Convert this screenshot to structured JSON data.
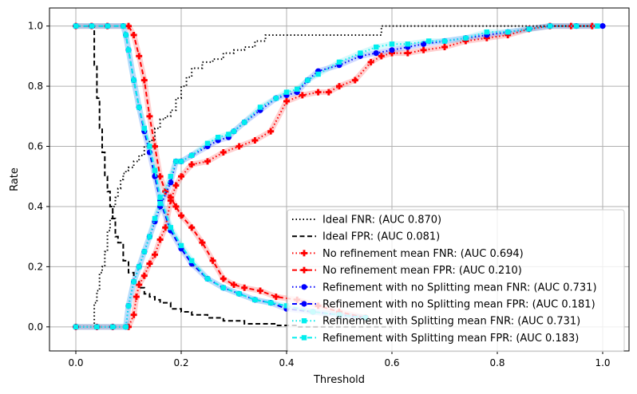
{
  "chart_data": {
    "type": "line",
    "title": "",
    "xlabel": "Threshold",
    "ylabel": "Rate",
    "xlim": [
      -0.05,
      1.05
    ],
    "ylim": [
      -0.08,
      1.06
    ],
    "xticks": [
      0.0,
      0.2,
      0.4,
      0.6,
      0.8,
      1.0
    ],
    "xtick_labels": [
      "0.0",
      "0.2",
      "0.4",
      "0.6",
      "0.8",
      "1.0"
    ],
    "yticks": [
      0.0,
      0.2,
      0.4,
      0.6,
      0.8,
      1.0
    ],
    "ytick_labels": [
      "0.0",
      "0.2",
      "0.4",
      "0.6",
      "0.8",
      "1.0"
    ],
    "grid": true,
    "legend_position": "lower-right",
    "series": [
      {
        "name": "Ideal FNR: (AUC 0.870)",
        "color": "#000000",
        "style": "dotted",
        "marker": "none",
        "x": [
          0.0,
          0.035,
          0.035,
          0.04,
          0.045,
          0.05,
          0.055,
          0.06,
          0.065,
          0.07,
          0.075,
          0.08,
          0.085,
          0.09,
          0.095,
          0.1,
          0.11,
          0.12,
          0.13,
          0.14,
          0.15,
          0.16,
          0.17,
          0.18,
          0.19,
          0.2,
          0.21,
          0.22,
          0.24,
          0.26,
          0.28,
          0.3,
          0.32,
          0.34,
          0.36,
          0.45,
          0.5,
          0.56,
          0.58,
          0.65,
          0.75,
          0.85,
          1.0
        ],
        "y": [
          0.0,
          0.0,
          0.08,
          0.12,
          0.18,
          0.2,
          0.25,
          0.32,
          0.36,
          0.4,
          0.43,
          0.46,
          0.49,
          0.51,
          0.52,
          0.53,
          0.55,
          0.57,
          0.6,
          0.62,
          0.66,
          0.69,
          0.7,
          0.72,
          0.76,
          0.8,
          0.83,
          0.86,
          0.88,
          0.89,
          0.91,
          0.92,
          0.93,
          0.95,
          0.97,
          0.97,
          0.97,
          0.97,
          1.0,
          1.0,
          1.0,
          1.0,
          1.0
        ]
      },
      {
        "name": "Ideal FPR: (AUC 0.081)",
        "color": "#000000",
        "style": "dashed",
        "marker": "none",
        "x": [
          0.0,
          0.03,
          0.035,
          0.04,
          0.045,
          0.05,
          0.055,
          0.06,
          0.065,
          0.07,
          0.075,
          0.08,
          0.09,
          0.1,
          0.11,
          0.12,
          0.13,
          0.14,
          0.15,
          0.16,
          0.18,
          0.2,
          0.22,
          0.25,
          0.28,
          0.3,
          0.32,
          0.35,
          0.38,
          0.42,
          0.45,
          0.5,
          0.55,
          0.6
        ],
        "y": [
          1.0,
          1.0,
          0.87,
          0.76,
          0.66,
          0.58,
          0.5,
          0.45,
          0.4,
          0.36,
          0.3,
          0.28,
          0.22,
          0.18,
          0.15,
          0.13,
          0.11,
          0.1,
          0.09,
          0.08,
          0.06,
          0.05,
          0.04,
          0.03,
          0.02,
          0.02,
          0.01,
          0.01,
          0.005,
          0.0,
          0.0,
          0.0,
          0.0,
          0.0
        ]
      },
      {
        "name": "No refinement mean FNR: (AUC 0.694)",
        "color": "#ff0000",
        "style": "dotted",
        "marker": "P",
        "x": [
          0.0,
          0.04,
          0.07,
          0.1,
          0.11,
          0.115,
          0.12,
          0.13,
          0.14,
          0.15,
          0.16,
          0.17,
          0.18,
          0.19,
          0.2,
          0.22,
          0.25,
          0.28,
          0.31,
          0.34,
          0.37,
          0.4,
          0.43,
          0.46,
          0.48,
          0.5,
          0.53,
          0.56,
          0.58,
          0.6,
          0.63,
          0.66,
          0.7,
          0.74,
          0.78,
          0.82,
          0.86,
          0.9,
          0.94,
          0.98
        ],
        "y": [
          0.0,
          0.0,
          0.0,
          0.0,
          0.04,
          0.1,
          0.14,
          0.17,
          0.21,
          0.24,
          0.29,
          0.33,
          0.42,
          0.47,
          0.5,
          0.54,
          0.55,
          0.58,
          0.6,
          0.62,
          0.65,
          0.75,
          0.77,
          0.78,
          0.78,
          0.8,
          0.82,
          0.88,
          0.9,
          0.91,
          0.91,
          0.92,
          0.93,
          0.95,
          0.96,
          0.97,
          0.99,
          1.0,
          1.0,
          1.0
        ]
      },
      {
        "name": "No refinement mean FPR: (AUC 0.210)",
        "color": "#ff0000",
        "style": "dashed",
        "marker": "P",
        "x": [
          0.0,
          0.03,
          0.06,
          0.1,
          0.11,
          0.12,
          0.13,
          0.14,
          0.15,
          0.16,
          0.17,
          0.18,
          0.19,
          0.2,
          0.22,
          0.24,
          0.26,
          0.28,
          0.3,
          0.32,
          0.35,
          0.38,
          0.42,
          0.46,
          0.5,
          0.55
        ],
        "y": [
          1.0,
          1.0,
          1.0,
          1.0,
          0.97,
          0.9,
          0.82,
          0.7,
          0.6,
          0.5,
          0.45,
          0.43,
          0.4,
          0.37,
          0.33,
          0.28,
          0.22,
          0.16,
          0.14,
          0.13,
          0.12,
          0.1,
          0.09,
          0.07,
          0.05,
          0.03
        ]
      },
      {
        "name": "Refinement with no Splitting mean FNR: (AUC 0.731)",
        "color": "#0000ff",
        "style": "dotted",
        "marker": "o",
        "x": [
          0.0,
          0.04,
          0.07,
          0.095,
          0.1,
          0.11,
          0.12,
          0.13,
          0.14,
          0.15,
          0.16,
          0.18,
          0.19,
          0.2,
          0.22,
          0.25,
          0.27,
          0.29,
          0.3,
          0.32,
          0.35,
          0.38,
          0.4,
          0.42,
          0.44,
          0.46,
          0.5,
          0.54,
          0.57,
          0.6,
          0.63,
          0.66,
          0.7,
          0.74,
          0.78,
          0.82,
          0.86,
          0.9,
          0.95,
          1.0
        ],
        "y": [
          0.0,
          0.0,
          0.0,
          0.0,
          0.07,
          0.15,
          0.2,
          0.25,
          0.3,
          0.35,
          0.4,
          0.48,
          0.55,
          0.55,
          0.57,
          0.6,
          0.62,
          0.63,
          0.65,
          0.68,
          0.72,
          0.76,
          0.77,
          0.78,
          0.82,
          0.85,
          0.87,
          0.9,
          0.91,
          0.92,
          0.93,
          0.94,
          0.95,
          0.96,
          0.97,
          0.98,
          0.99,
          1.0,
          1.0,
          1.0
        ]
      },
      {
        "name": "Refinement with no Splitting mean FPR: (AUC 0.181)",
        "color": "#0000ff",
        "style": "dashed",
        "marker": "o",
        "x": [
          0.0,
          0.03,
          0.06,
          0.09,
          0.095,
          0.1,
          0.11,
          0.12,
          0.13,
          0.14,
          0.15,
          0.16,
          0.18,
          0.2,
          0.22,
          0.25,
          0.28,
          0.31,
          0.34,
          0.37,
          0.4,
          0.45,
          0.5,
          0.55
        ],
        "y": [
          1.0,
          1.0,
          1.0,
          1.0,
          0.97,
          0.92,
          0.82,
          0.73,
          0.65,
          0.58,
          0.5,
          0.42,
          0.32,
          0.26,
          0.21,
          0.16,
          0.13,
          0.11,
          0.09,
          0.08,
          0.06,
          0.05,
          0.04,
          0.03
        ]
      },
      {
        "name": "Refinement with Splitting mean FNR: (AUC 0.731)",
        "color": "#00eeee",
        "style": "dotted",
        "marker": "s",
        "x": [
          0.0,
          0.04,
          0.07,
          0.095,
          0.1,
          0.11,
          0.12,
          0.13,
          0.14,
          0.15,
          0.16,
          0.18,
          0.19,
          0.2,
          0.22,
          0.25,
          0.27,
          0.29,
          0.3,
          0.32,
          0.35,
          0.38,
          0.4,
          0.42,
          0.44,
          0.46,
          0.5,
          0.54,
          0.57,
          0.6,
          0.63,
          0.67,
          0.7,
          0.74,
          0.78,
          0.82,
          0.86,
          0.9,
          0.95,
          0.99
        ],
        "y": [
          0.0,
          0.0,
          0.0,
          0.0,
          0.07,
          0.15,
          0.2,
          0.25,
          0.3,
          0.36,
          0.41,
          0.5,
          0.55,
          0.55,
          0.57,
          0.61,
          0.63,
          0.64,
          0.65,
          0.68,
          0.73,
          0.76,
          0.78,
          0.79,
          0.82,
          0.84,
          0.88,
          0.91,
          0.93,
          0.94,
          0.94,
          0.95,
          0.95,
          0.96,
          0.98,
          0.98,
          0.99,
          1.0,
          1.0,
          1.0
        ]
      },
      {
        "name": "Refinement with Splitting mean FPR: (AUC 0.183)",
        "color": "#00eeee",
        "style": "dashed",
        "marker": "s",
        "x": [
          0.0,
          0.03,
          0.06,
          0.09,
          0.095,
          0.1,
          0.11,
          0.12,
          0.13,
          0.14,
          0.15,
          0.16,
          0.18,
          0.2,
          0.22,
          0.25,
          0.28,
          0.31,
          0.34,
          0.37,
          0.4,
          0.45,
          0.5,
          0.55
        ],
        "y": [
          1.0,
          1.0,
          1.0,
          1.0,
          0.97,
          0.92,
          0.82,
          0.73,
          0.66,
          0.6,
          0.52,
          0.43,
          0.33,
          0.27,
          0.22,
          0.16,
          0.13,
          0.11,
          0.09,
          0.08,
          0.07,
          0.05,
          0.04,
          0.03
        ]
      }
    ]
  }
}
